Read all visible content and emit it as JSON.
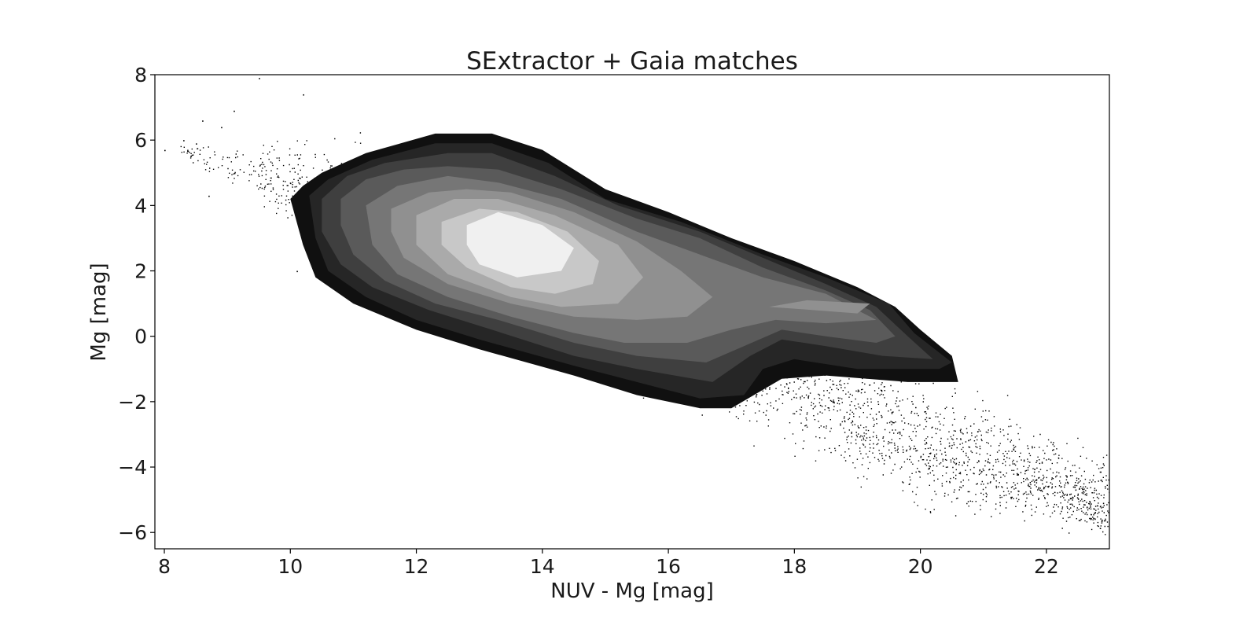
{
  "chart_data": {
    "type": "scatter",
    "title": "SExtractor + Gaia matches",
    "xlabel": "NUV - Mg [mag]",
    "ylabel": "Mg [mag]",
    "xlim": [
      7.85,
      23.0
    ],
    "ylim": [
      -6.5,
      8.0
    ],
    "xticks": [
      8,
      10,
      12,
      14,
      16,
      18,
      20,
      22
    ],
    "xtick_labels": [
      "8",
      "10",
      "12",
      "14",
      "16",
      "18",
      "20",
      "22"
    ],
    "yticks": [
      -6,
      -4,
      -2,
      0,
      2,
      4,
      6,
      8
    ],
    "ytick_labels": [
      "−6",
      "−4",
      "−2",
      "0",
      "2",
      "4",
      "6",
      "8"
    ],
    "grid": false,
    "legend": "none",
    "scatter_style": {
      "marker": "point",
      "color": "#000000"
    },
    "scatter_distribution": {
      "description": "dense diagonal band of individual points outside the contoured region",
      "ridge": [
        [
          8.2,
          5.8
        ],
        [
          10,
          4.6
        ],
        [
          12,
          3.7
        ],
        [
          14,
          2.4
        ],
        [
          16,
          0.6
        ],
        [
          18,
          -1.4
        ],
        [
          20,
          -3.3
        ],
        [
          22,
          -4.4
        ],
        [
          23,
          -5.4
        ]
      ],
      "upper_edge": [
        [
          8.2,
          6.0
        ],
        [
          10,
          6.9
        ],
        [
          12,
          7.2
        ],
        [
          14,
          6.3
        ],
        [
          16,
          4.0
        ],
        [
          18,
          2.2
        ],
        [
          20,
          0.2
        ],
        [
          22,
          -1.7
        ],
        [
          23,
          -2.9
        ]
      ],
      "lower_edge": [
        [
          8.2,
          5.6
        ],
        [
          10,
          2.6
        ],
        [
          12,
          0.6
        ],
        [
          14,
          -0.8
        ],
        [
          16,
          -2.6
        ],
        [
          18,
          -4.5
        ],
        [
          20,
          -6.4
        ],
        [
          22,
          -6.5
        ],
        [
          23,
          -6.5
        ]
      ]
    },
    "contours": {
      "type": "filled",
      "colors": [
        "#101010",
        "#262626",
        "#3f3f3f",
        "#5a5a5a",
        "#767676",
        "#909090",
        "#aaaaaa",
        "#c8c8c8",
        "#f0f0f0"
      ],
      "levels": [
        [
          [
            10.0,
            4.2
          ],
          [
            10.2,
            4.6
          ],
          [
            10.5,
            5.0
          ],
          [
            11.2,
            5.6
          ],
          [
            12.3,
            6.2
          ],
          [
            13.2,
            6.2
          ],
          [
            14.0,
            5.7
          ],
          [
            15.0,
            4.5
          ],
          [
            16.0,
            3.8
          ],
          [
            17.0,
            3.0
          ],
          [
            18.0,
            2.3
          ],
          [
            19.0,
            1.5
          ],
          [
            19.6,
            0.9
          ],
          [
            20.0,
            0.2
          ],
          [
            20.5,
            -0.6
          ],
          [
            20.6,
            -1.4
          ],
          [
            19.8,
            -1.4
          ],
          [
            18.5,
            -1.2
          ],
          [
            17.8,
            -1.3
          ],
          [
            17.0,
            -2.2
          ],
          [
            16.5,
            -2.2
          ],
          [
            15.5,
            -1.8
          ],
          [
            14.5,
            -1.2
          ],
          [
            13.0,
            -0.4
          ],
          [
            12.0,
            0.2
          ],
          [
            11.0,
            1.0
          ],
          [
            10.4,
            1.8
          ],
          [
            10.2,
            2.8
          ]
        ],
        [
          [
            10.3,
            4.3
          ],
          [
            10.6,
            4.8
          ],
          [
            11.3,
            5.4
          ],
          [
            12.3,
            5.9
          ],
          [
            13.2,
            5.9
          ],
          [
            14.1,
            5.3
          ],
          [
            15.0,
            4.2
          ],
          [
            16.2,
            3.5
          ],
          [
            17.5,
            2.5
          ],
          [
            18.5,
            1.8
          ],
          [
            19.5,
            1.0
          ],
          [
            19.9,
            0.1
          ],
          [
            20.5,
            -0.8
          ],
          [
            20.3,
            -1.0
          ],
          [
            19.0,
            -1.0
          ],
          [
            18.0,
            -0.7
          ],
          [
            17.5,
            -1.0
          ],
          [
            17.2,
            -1.8
          ],
          [
            16.5,
            -1.9
          ],
          [
            15.5,
            -1.4
          ],
          [
            14.5,
            -0.9
          ],
          [
            13.0,
            -0.1
          ],
          [
            12.0,
            0.5
          ],
          [
            11.2,
            1.2
          ],
          [
            10.6,
            2.0
          ],
          [
            10.4,
            3.0
          ]
        ],
        [
          [
            10.5,
            4.2
          ],
          [
            10.9,
            4.9
          ],
          [
            11.5,
            5.3
          ],
          [
            12.5,
            5.6
          ],
          [
            13.2,
            5.6
          ],
          [
            14.2,
            4.9
          ],
          [
            15.2,
            4.0
          ],
          [
            16.5,
            3.2
          ],
          [
            17.5,
            2.4
          ],
          [
            18.5,
            1.6
          ],
          [
            19.3,
            0.9
          ],
          [
            19.8,
            0.0
          ],
          [
            20.2,
            -0.7
          ],
          [
            19.4,
            -0.6
          ],
          [
            18.5,
            -0.3
          ],
          [
            17.8,
            -0.1
          ],
          [
            17.3,
            -0.6
          ],
          [
            16.7,
            -1.4
          ],
          [
            15.5,
            -1.0
          ],
          [
            14.5,
            -0.6
          ],
          [
            13.2,
            0.2
          ],
          [
            12.2,
            0.8
          ],
          [
            11.3,
            1.5
          ],
          [
            10.8,
            2.2
          ],
          [
            10.5,
            3.2
          ]
        ],
        [
          [
            10.8,
            4.2
          ],
          [
            11.2,
            4.8
          ],
          [
            11.8,
            5.1
          ],
          [
            12.5,
            5.2
          ],
          [
            13.3,
            5.1
          ],
          [
            14.3,
            4.5
          ],
          [
            15.5,
            3.6
          ],
          [
            16.5,
            3.0
          ],
          [
            17.5,
            2.1
          ],
          [
            18.5,
            1.4
          ],
          [
            19.2,
            0.8
          ],
          [
            19.6,
            0.0
          ],
          [
            19.3,
            -0.2
          ],
          [
            18.5,
            0.0
          ],
          [
            17.8,
            0.2
          ],
          [
            17.2,
            -0.3
          ],
          [
            16.6,
            -0.8
          ],
          [
            15.5,
            -0.6
          ],
          [
            14.5,
            -0.2
          ],
          [
            13.3,
            0.5
          ],
          [
            12.3,
            1.0
          ],
          [
            11.5,
            1.7
          ],
          [
            11.0,
            2.5
          ],
          [
            10.8,
            3.4
          ]
        ],
        [
          [
            11.2,
            4.0
          ],
          [
            11.7,
            4.6
          ],
          [
            12.5,
            4.9
          ],
          [
            13.3,
            4.7
          ],
          [
            14.3,
            4.2
          ],
          [
            15.5,
            3.2
          ],
          [
            16.5,
            2.5
          ],
          [
            17.5,
            1.8
          ],
          [
            18.5,
            1.3
          ],
          [
            19.3,
            0.5
          ],
          [
            18.5,
            0.4
          ],
          [
            17.7,
            0.5
          ],
          [
            17.0,
            0.2
          ],
          [
            16.3,
            -0.2
          ],
          [
            15.3,
            -0.2
          ],
          [
            14.5,
            0.1
          ],
          [
            13.5,
            0.6
          ],
          [
            12.5,
            1.2
          ],
          [
            11.7,
            1.9
          ],
          [
            11.3,
            2.8
          ]
        ],
        [
          [
            11.6,
            3.9
          ],
          [
            12.2,
            4.4
          ],
          [
            12.8,
            4.5
          ],
          [
            13.5,
            4.4
          ],
          [
            14.5,
            3.8
          ],
          [
            15.5,
            2.9
          ],
          [
            16.2,
            2.0
          ],
          [
            16.7,
            1.2
          ],
          [
            16.3,
            0.6
          ],
          [
            15.5,
            0.5
          ],
          [
            14.5,
            0.6
          ],
          [
            13.5,
            1.0
          ],
          [
            12.5,
            1.6
          ],
          [
            11.8,
            2.4
          ],
          [
            11.6,
            3.2
          ]
        ],
        [
          [
            12.0,
            3.7
          ],
          [
            12.6,
            4.2
          ],
          [
            13.3,
            4.2
          ],
          [
            14.2,
            3.7
          ],
          [
            15.2,
            2.8
          ],
          [
            15.6,
            1.8
          ],
          [
            15.2,
            1.0
          ],
          [
            14.3,
            0.9
          ],
          [
            13.5,
            1.2
          ],
          [
            12.5,
            1.9
          ],
          [
            12.0,
            2.8
          ]
        ],
        [
          [
            12.4,
            3.5
          ],
          [
            13.0,
            3.9
          ],
          [
            13.6,
            3.8
          ],
          [
            14.4,
            3.2
          ],
          [
            14.9,
            2.3
          ],
          [
            14.8,
            1.6
          ],
          [
            14.2,
            1.3
          ],
          [
            13.5,
            1.5
          ],
          [
            12.8,
            2.1
          ],
          [
            12.4,
            2.8
          ]
        ],
        [
          [
            12.8,
            3.4
          ],
          [
            13.3,
            3.8
          ],
          [
            14.0,
            3.4
          ],
          [
            14.5,
            2.7
          ],
          [
            14.3,
            2.0
          ],
          [
            13.6,
            1.8
          ],
          [
            13.0,
            2.2
          ],
          [
            12.8,
            2.8
          ]
        ]
      ],
      "island": [
        [
          17.6,
          0.9
        ],
        [
          18.2,
          1.1
        ],
        [
          19.2,
          1.0
        ],
        [
          19.0,
          0.7
        ],
        [
          18.3,
          0.8
        ]
      ]
    }
  }
}
